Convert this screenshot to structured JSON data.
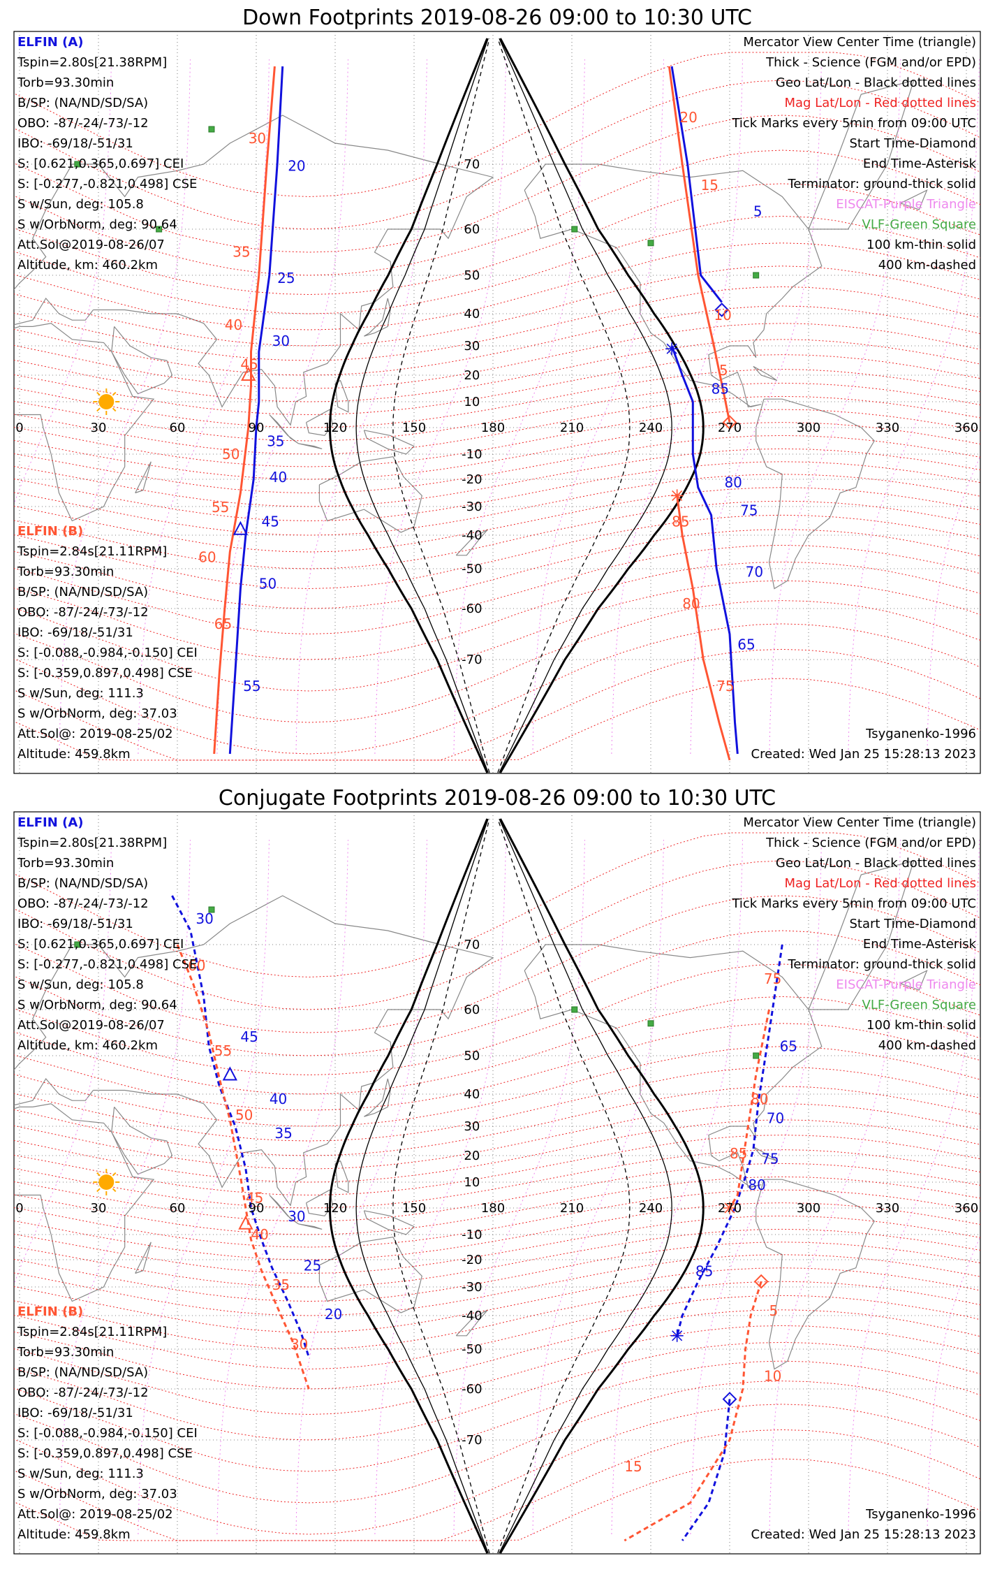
{
  "colors": {
    "elfin_a": "#1111dd",
    "elfin_b": "#ff5533",
    "mag_grid": "#ee2222",
    "geo_grid": "#000000",
    "eiscat": "#ee88ee",
    "vlf": "#44aa44",
    "sun": "#ffaa00",
    "coast": "#888888"
  },
  "panels": [
    {
      "title": "Down Footprints 2019-08-26 09:00 to 10:30 UTC",
      "elfin_a": {
        "name": "ELFIN (A)",
        "lines": [
          "Tspin=2.80s[21.38RPM]",
          "Torb=93.30min",
          "B/SP: (NA/ND/SD/SA)",
          "OBO: -87/-24/-73/-12",
          "IBO: -69/18/-51/31",
          "S: [0.621,0.365,0.697] CEI",
          "S: [-0.277,-0.821,0.498] CSE",
          "S w/Sun, deg: 105.8",
          "S w/OrbNorm, deg: 90.64",
          "Att.Sol@2019-08-26/07",
          "Altitude, km: 460.2km"
        ]
      },
      "elfin_b": {
        "name": "ELFIN (B)",
        "lines": [
          "Tspin=2.84s[21.11RPM]",
          "Torb=93.30min",
          "B/SP: (NA/ND/SD/SA)",
          "OBO: -87/-24/-73/-12",
          "IBO: -69/18/-51/31",
          "S: [-0.088,-0.984,-0.150] CEI",
          "S: [-0.359,0.897,0.498] CSE",
          "S w/Sun, deg: 111.3",
          "S w/OrbNorm, deg: 37.03",
          "Att.Sol@: 2019-08-25/02",
          "Altitude: 459.8km"
        ]
      },
      "legend": [
        {
          "text": "Mercator View Center Time (triangle)",
          "color": "#000000"
        },
        {
          "text": "Thick - Science (FGM and/or EPD)",
          "color": "#000000"
        },
        {
          "text": "Geo Lat/Lon - Black dotted lines",
          "color": "#000000"
        },
        {
          "text": "Mag Lat/Lon - Red dotted lines",
          "color": "#ee2222"
        },
        {
          "text": "Tick Marks every 5min from 09:00 UTC",
          "color": "#000000"
        },
        {
          "text": "Start Time-Diamond",
          "color": "#000000"
        },
        {
          "text": "End Time-Asterisk",
          "color": "#000000"
        },
        {
          "text": "Terminator: ground-thick solid",
          "color": "#000000"
        },
        {
          "text": "EISCAT-Purple Triangle",
          "color": "#ee88ee"
        },
        {
          "text": "VLF-Green Square",
          "color": "#44aa44"
        },
        {
          "text": "100 km-thin solid",
          "color": "#000000"
        },
        {
          "text": "400 km-dashed",
          "color": "#000000"
        }
      ],
      "footer_left": "",
      "model": "Tsyganenko-1996",
      "created": "Created: Wed Jan 25 15:28:13 2023",
      "lon_ticks": [
        "0",
        "30",
        "60",
        "90",
        "120",
        "150",
        "180",
        "210",
        "240",
        "270",
        "300",
        "330",
        "360"
      ],
      "lat_ticks": [
        "70",
        "60",
        "50",
        "40",
        "30",
        "20",
        "10",
        "-10",
        "-20",
        "-30",
        "-40",
        "-50",
        "-60",
        "-70"
      ],
      "labels_a": [
        {
          "t": "20",
          "lon": 102,
          "lat": 69
        },
        {
          "t": "25",
          "lon": 98,
          "lat": 48
        },
        {
          "t": "30",
          "lon": 96,
          "lat": 30
        },
        {
          "t": "35",
          "lon": 94,
          "lat": -7
        },
        {
          "t": "40",
          "lon": 95,
          "lat": -21
        },
        {
          "t": "45",
          "lon": 92,
          "lat": -37
        },
        {
          "t": "50",
          "lon": 91,
          "lat": -55
        },
        {
          "t": "55",
          "lon": 85,
          "lat": -75
        },
        {
          "t": "5",
          "lon": 279,
          "lat": 62
        },
        {
          "t": "85",
          "lon": 263,
          "lat": 13
        },
        {
          "t": "80",
          "lon": 268,
          "lat": -23
        },
        {
          "t": "75",
          "lon": 274,
          "lat": -33
        },
        {
          "t": "70",
          "lon": 276,
          "lat": -52
        },
        {
          "t": "65",
          "lon": 273,
          "lat": -68
        }
      ],
      "labels_b": [
        {
          "t": "30",
          "lon": 87,
          "lat": 73
        },
        {
          "t": "35",
          "lon": 81,
          "lat": 54
        },
        {
          "t": "40",
          "lon": 78,
          "lat": 35
        },
        {
          "t": "45",
          "lon": 84,
          "lat": 22
        },
        {
          "t": "50",
          "lon": 77,
          "lat": -12
        },
        {
          "t": "55",
          "lon": 73,
          "lat": -32
        },
        {
          "t": "60",
          "lon": 68,
          "lat": -48
        },
        {
          "t": "65",
          "lon": 74,
          "lat": -64
        },
        {
          "t": "20",
          "lon": 251,
          "lat": 76
        },
        {
          "t": "15",
          "lon": 259,
          "lat": 66
        },
        {
          "t": "10",
          "lon": 264,
          "lat": 38
        },
        {
          "t": "5",
          "lon": 266,
          "lat": 20
        },
        {
          "t": "85",
          "lon": 248,
          "lat": -37
        },
        {
          "t": "80",
          "lon": 252,
          "lat": -60
        },
        {
          "t": "75",
          "lon": 265,
          "lat": -75
        }
      ],
      "vlf_sites": [
        [
          22,
          70
        ],
        [
          73,
          75
        ],
        [
          53,
          60
        ],
        [
          211,
          60
        ],
        [
          240,
          57
        ],
        [
          280,
          50
        ]
      ]
    },
    {
      "title": "Conjugate Footprints 2019-08-26 09:00 to 10:30 UTC",
      "elfin_a": {
        "name": "ELFIN (A)",
        "lines": [
          "Tspin=2.80s[21.38RPM]",
          "Torb=93.30min",
          "B/SP: (NA/ND/SD/SA)",
          "OBO: -87/-24/-73/-12",
          "IBO: -69/18/-51/31",
          "S: [0.621,0.365,0.697] CEI",
          "S: [-0.277,-0.821,0.498] CSE",
          "S w/Sun, deg: 105.8",
          "S w/OrbNorm, deg: 90.64",
          "Att.Sol@2019-08-26/07",
          "Altitude, km: 460.2km"
        ]
      },
      "elfin_b": {
        "name": "ELFIN (B)",
        "lines": [
          "Tspin=2.84s[21.11RPM]",
          "Torb=93.30min",
          "B/SP: (NA/ND/SD/SA)",
          "OBO: -87/-24/-73/-12",
          "IBO: -69/18/-51/31",
          "S: [-0.088,-0.984,-0.150] CEI",
          "S: [-0.359,0.897,0.498] CSE",
          "S w/Sun, deg: 111.3",
          "S w/OrbNorm, deg: 37.03",
          "Att.Sol@: 2019-08-25/02",
          "Altitude: 459.8km"
        ]
      },
      "legend": [
        {
          "text": "Mercator View Center Time (triangle)",
          "color": "#000000"
        },
        {
          "text": "Thick - Science (FGM and/or EPD)",
          "color": "#000000"
        },
        {
          "text": "Geo Lat/Lon - Black dotted lines",
          "color": "#000000"
        },
        {
          "text": "Mag Lat/Lon - Red dotted lines",
          "color": "#ee2222"
        },
        {
          "text": "Tick Marks every 5min from 09:00 UTC",
          "color": "#000000"
        },
        {
          "text": "Start Time-Diamond",
          "color": "#000000"
        },
        {
          "text": "End Time-Asterisk",
          "color": "#000000"
        },
        {
          "text": "Terminator: ground-thick solid",
          "color": "#000000"
        },
        {
          "text": "EISCAT-Purple Triangle",
          "color": "#ee88ee"
        },
        {
          "text": "VLF-Green Square",
          "color": "#44aa44"
        },
        {
          "text": "100 km-thin solid",
          "color": "#000000"
        },
        {
          "text": "400 km-dashed",
          "color": "#000000"
        }
      ],
      "footer_left": "",
      "model": "Tsyganenko-1996",
      "created": "Created: Wed Jan 25 15:28:13 2023",
      "lon_ticks": [
        "0",
        "30",
        "60",
        "90",
        "120",
        "150",
        "180",
        "210",
        "240",
        "270",
        "300",
        "330",
        "360"
      ],
      "lat_ticks": [
        "70",
        "60",
        "50",
        "40",
        "30",
        "20",
        "10",
        "-10",
        "-20",
        "-30",
        "-40",
        "-50",
        "-60",
        "-70"
      ],
      "labels_a": [
        {
          "t": "30",
          "lon": 67,
          "lat": 73
        },
        {
          "t": "45",
          "lon": 84,
          "lat": 53
        },
        {
          "t": "40",
          "lon": 95,
          "lat": 37
        },
        {
          "t": "35",
          "lon": 97,
          "lat": 26
        },
        {
          "t": "30",
          "lon": 102,
          "lat": -5
        },
        {
          "t": "25",
          "lon": 108,
          "lat": -24
        },
        {
          "t": "20",
          "lon": 116,
          "lat": -41
        },
        {
          "t": "65",
          "lon": 289,
          "lat": 51
        },
        {
          "t": "70",
          "lon": 284,
          "lat": 31
        },
        {
          "t": "75",
          "lon": 282,
          "lat": 17
        },
        {
          "t": "80",
          "lon": 277,
          "lat": 7
        },
        {
          "t": "85",
          "lon": 257,
          "lat": -26
        }
      ],
      "labels_b": [
        {
          "t": "60",
          "lon": 64,
          "lat": 66
        },
        {
          "t": "55",
          "lon": 74,
          "lat": 50
        },
        {
          "t": "50",
          "lon": 82,
          "lat": 32
        },
        {
          "t": "45",
          "lon": 86,
          "lat": 2
        },
        {
          "t": "40",
          "lon": 88,
          "lat": -12
        },
        {
          "t": "35",
          "lon": 96,
          "lat": -31
        },
        {
          "t": "30",
          "lon": 103,
          "lat": -50
        },
        {
          "t": "75",
          "lon": 283,
          "lat": 64
        },
        {
          "t": "80",
          "lon": 278,
          "lat": 37
        },
        {
          "t": "85",
          "lon": 270,
          "lat": 19
        },
        {
          "t": "5",
          "lon": 285,
          "lat": -40
        },
        {
          "t": "10",
          "lon": 283,
          "lat": -58
        },
        {
          "t": "15",
          "lon": 230,
          "lat": -75
        }
      ],
      "vlf_sites": [
        [
          22,
          70
        ],
        [
          73,
          75
        ],
        [
          211,
          60
        ],
        [
          240,
          57
        ],
        [
          280,
          50
        ]
      ]
    }
  ]
}
